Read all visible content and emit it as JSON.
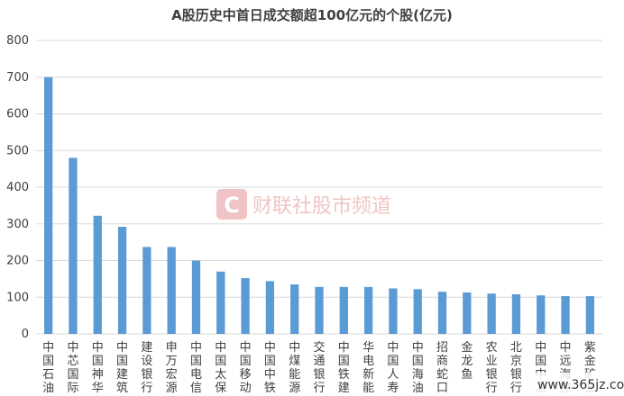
{
  "chart_data": {
    "type": "bar",
    "title": "A股历史中首日成交额超100亿元的个股(亿元)",
    "xlabel": "",
    "ylabel": "",
    "ylim": [
      0,
      800
    ],
    "yticks": [
      0,
      100,
      200,
      300,
      400,
      500,
      600,
      700,
      800
    ],
    "grid": true,
    "categories": [
      "中国石油",
      "中芯国际",
      "中国神华",
      "中国建筑",
      "建设银行",
      "申万宏源",
      "中国电信",
      "中国太保",
      "中国移动",
      "中国中铁",
      "中煤能源",
      "交通银行",
      "中国铁建",
      "华电新能",
      "中国人寿",
      "中国海油",
      "招商蛇口",
      "金龙鱼",
      "农业银行",
      "北京银行",
      "中国中冶",
      "中远海控",
      "紫金矿业"
    ],
    "values": [
      700,
      480,
      322,
      292,
      237,
      237,
      200,
      170,
      152,
      144,
      135,
      128,
      128,
      128,
      124,
      122,
      115,
      113,
      110,
      108,
      105,
      103,
      103
    ],
    "color": "#5b9bd5"
  },
  "watermark": {
    "logo_letter": "C",
    "text": "财联社股市频道"
  },
  "corner_watermark": "www.365jz.com"
}
